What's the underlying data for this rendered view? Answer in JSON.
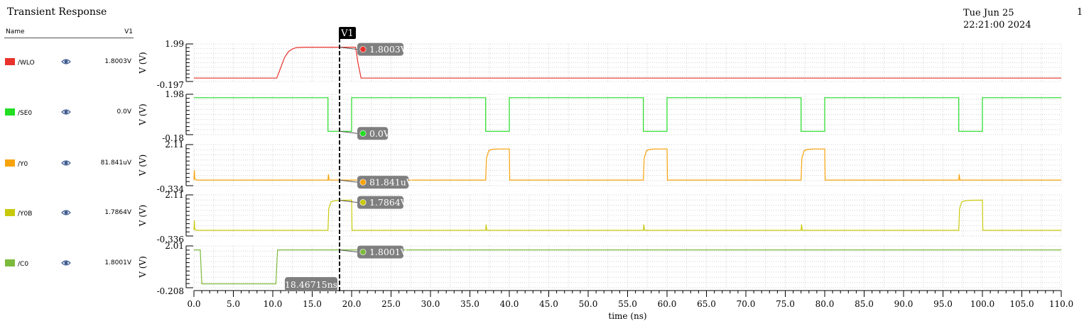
{
  "header": {
    "title": "Transient Response",
    "date": "Tue Jun 25 22:21:00 2024",
    "page": "1"
  },
  "legend": {
    "name_header": "Name",
    "column_header": "V1"
  },
  "colors": {
    "WLO": "#e8322b",
    "SE0": "#22dd22",
    "Y0": "#f7a30c",
    "Y0B": "#c9c90c",
    "C0": "#7cba3c",
    "cursor_bubble": "#7f7f7f",
    "grid": "#d4d4d4"
  },
  "cursor": {
    "name": "V1",
    "time_label": "18.46715ns",
    "time_ns": 18.46715
  },
  "chart_data": {
    "type": "line",
    "xlabel": "time (ns)",
    "xlim": [
      0.0,
      110.0
    ],
    "xticks": [
      "0.0",
      "5.0",
      "10.0",
      "15.0",
      "20.0",
      "25.0",
      "30.0",
      "35.0",
      "40.0",
      "45.0",
      "50.0",
      "55.0",
      "60.0",
      "65.0",
      "70.0",
      "75.0",
      "80.0",
      "85.0",
      "90.0",
      "95.0",
      "100.0",
      "105.0",
      "110.0"
    ],
    "grid": true,
    "series": [
      {
        "name": "/WLO",
        "ylabel": "V (V)",
        "ymax_label": "1.99",
        "ymin_label": "-0.197",
        "ylim": [
          -0.197,
          1.99
        ],
        "cursor_value": "1.8003V",
        "cursor_value_num": 1.8003,
        "x": [
          0,
          10.5,
          11.0,
          11.5,
          12.0,
          12.5,
          13.0,
          14.0,
          20.5,
          20.8,
          21.2,
          110
        ],
        "y": [
          0.0,
          0.0,
          0.6,
          1.2,
          1.55,
          1.7,
          1.78,
          1.8,
          1.8,
          0.9,
          0.0,
          0.0
        ]
      },
      {
        "name": "/SE0",
        "ylabel": "V (V)",
        "ymax_label": "1.98",
        "ymin_label": "-0.18",
        "ylim": [
          -0.18,
          1.98
        ],
        "cursor_value": "0.0V",
        "cursor_value_num": 0.0,
        "x": [
          0,
          17,
          17,
          20,
          20,
          37,
          37,
          40,
          40,
          57,
          57,
          60,
          60,
          77,
          77,
          80,
          80,
          97,
          97,
          100,
          100,
          110
        ],
        "y": [
          1.8,
          1.8,
          0.0,
          0.0,
          1.8,
          1.8,
          0.0,
          0.0,
          1.8,
          1.8,
          0.0,
          0.0,
          1.8,
          1.8,
          0.0,
          0.0,
          1.8,
          1.8,
          0.0,
          0.0,
          1.8,
          1.8
        ]
      },
      {
        "name": "/Y0",
        "ylabel": "V (V)",
        "ymax_label": "2.11",
        "ymin_label": "-0.334",
        "ylim": [
          -0.334,
          2.11
        ],
        "cursor_value": "81.841uV",
        "cursor_value_num": 8.1841e-05,
        "x": [
          0,
          0.05,
          0.1,
          0.3,
          17.0,
          17.05,
          17.15,
          37.0,
          37.1,
          37.4,
          37.8,
          38.5,
          40.0,
          40.05,
          57.0,
          57.1,
          57.4,
          57.8,
          58.5,
          60.0,
          60.05,
          77.0,
          77.1,
          77.4,
          77.8,
          78.5,
          80.0,
          80.05,
          97.0,
          97.05,
          97.15,
          110
        ],
        "y": [
          0.0,
          0.6,
          0.1,
          0.0,
          0.0,
          0.35,
          0.0,
          0.0,
          1.3,
          1.75,
          1.82,
          1.85,
          1.85,
          0.0,
          0.0,
          1.3,
          1.75,
          1.82,
          1.85,
          1.85,
          0.0,
          0.0,
          1.3,
          1.75,
          1.82,
          1.85,
          1.85,
          0.0,
          0.0,
          0.35,
          0.0,
          0.0
        ]
      },
      {
        "name": "/Y0B",
        "ylabel": "V (V)",
        "ymax_label": "2.11",
        "ymin_label": "-0.336",
        "ylim": [
          -0.336,
          2.11
        ],
        "cursor_value": "1.7864V",
        "cursor_value_num": 1.7864,
        "x": [
          0,
          0.05,
          0.1,
          0.3,
          17.0,
          17.1,
          17.4,
          17.8,
          18.5,
          20.0,
          20.05,
          37.0,
          37.05,
          37.15,
          57.0,
          57.05,
          57.15,
          77.0,
          77.05,
          77.15,
          97.0,
          97.1,
          97.4,
          97.8,
          98.5,
          100.0,
          100.05,
          110
        ],
        "y": [
          0.0,
          0.6,
          0.1,
          0.0,
          0.0,
          1.3,
          1.7,
          1.76,
          1.79,
          1.8,
          0.0,
          0.0,
          0.35,
          0.0,
          0.0,
          0.35,
          0.0,
          0.0,
          0.35,
          0.0,
          0.0,
          1.3,
          1.7,
          1.76,
          1.79,
          1.8,
          0.0,
          0.0
        ]
      },
      {
        "name": "/C0",
        "ylabel": "V (V)",
        "ymax_label": "2.01",
        "ymin_label": "-0.208",
        "ylim": [
          -0.208,
          2.01
        ],
        "cursor_value": "1.8001V",
        "cursor_value_num": 1.8001,
        "x": [
          0,
          0.8,
          1.0,
          10.4,
          10.6,
          110
        ],
        "y": [
          1.8,
          1.8,
          0.0,
          0.0,
          1.8,
          1.8
        ]
      }
    ]
  }
}
